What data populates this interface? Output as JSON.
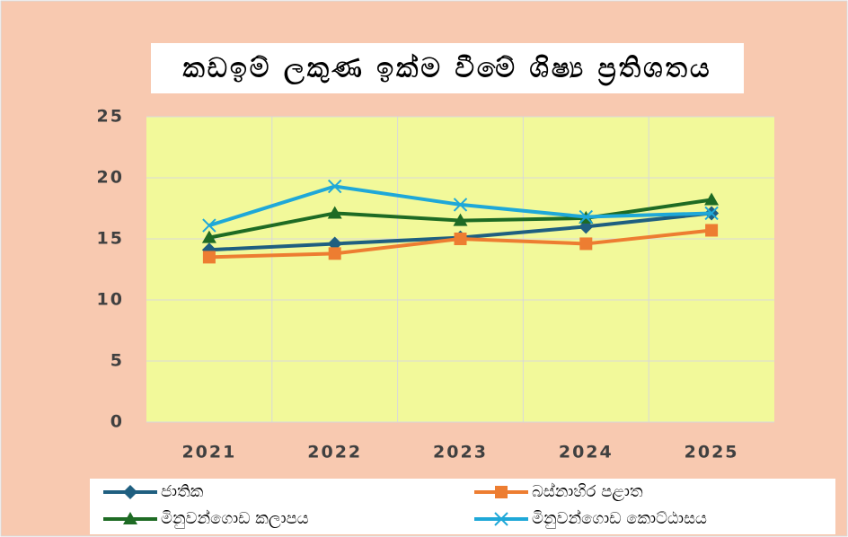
{
  "chart_data": {
    "type": "line",
    "title": "කඩඉම් ලකුණ ඉක්ම වීමේ ශිෂ්‍ය ප්‍රතිශතය",
    "categories": [
      "2021",
      "2022",
      "2023",
      "2024",
      "2025"
    ],
    "series": [
      {
        "name": "ජාතික",
        "color": "#1f5f80",
        "marker": "diamond",
        "values": [
          14.1,
          14.6,
          15.1,
          16.0,
          17.1
        ]
      },
      {
        "name": "බස්නාහිර පළාත",
        "color": "#ed7d31",
        "marker": "square",
        "values": [
          13.5,
          13.8,
          15.0,
          14.6,
          15.7
        ]
      },
      {
        "name": "මිනුවන්ගොඩ කලාපය",
        "color": "#1e6b24",
        "marker": "triangle",
        "values": [
          15.1,
          17.1,
          16.5,
          16.7,
          18.2
        ]
      },
      {
        "name": "මිනුවන්ගොඩ කොට්ඨාසය",
        "color": "#1fa8d8",
        "marker": "x",
        "values": [
          16.1,
          19.3,
          17.8,
          16.8,
          17.1
        ]
      }
    ],
    "ylim": [
      0,
      25
    ],
    "yticks": [
      0,
      5,
      10,
      15,
      20,
      25
    ],
    "grid": true
  }
}
